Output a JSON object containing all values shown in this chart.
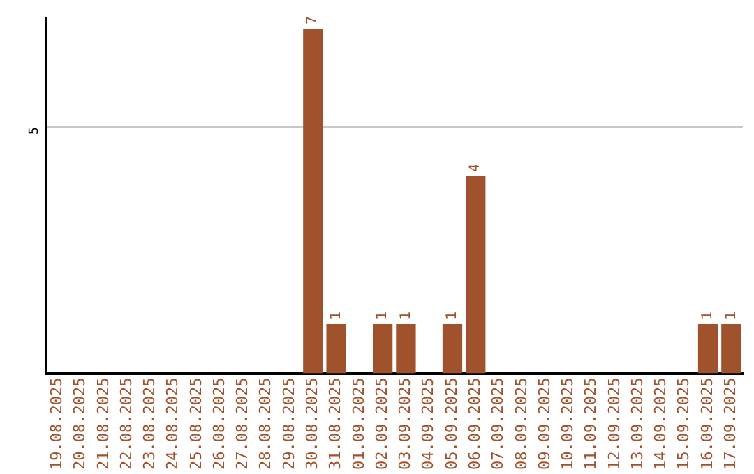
{
  "chart_data": {
    "type": "bar",
    "categories": [
      "19.08.2025",
      "20.08.2025",
      "21.08.2025",
      "22.08.2025",
      "23.08.2025",
      "24.08.2025",
      "25.08.2025",
      "26.08.2025",
      "27.08.2025",
      "28.08.2025",
      "29.08.2025",
      "30.08.2025",
      "31.08.2025",
      "01.09.2025",
      "02.09.2025",
      "03.09.2025",
      "04.09.2025",
      "05.09.2025",
      "06.09.2025",
      "07.09.2025",
      "08.09.2025",
      "09.09.2025",
      "10.09.2025",
      "11.09.2025",
      "12.09.2025",
      "13.09.2025",
      "14.09.2025",
      "15.09.2025",
      "16.09.2025",
      "17.09.2025"
    ],
    "values": [
      null,
      null,
      null,
      null,
      null,
      null,
      null,
      null,
      null,
      null,
      null,
      7,
      1,
      null,
      1,
      1,
      null,
      1,
      4,
      null,
      null,
      null,
      null,
      null,
      null,
      null,
      null,
      null,
      1,
      1
    ],
    "color": "#a0522d",
    "ylim": [
      0,
      7.2
    ],
    "yticks": [
      5
    ],
    "grid": "y",
    "data_labels": true,
    "legend": false
  }
}
